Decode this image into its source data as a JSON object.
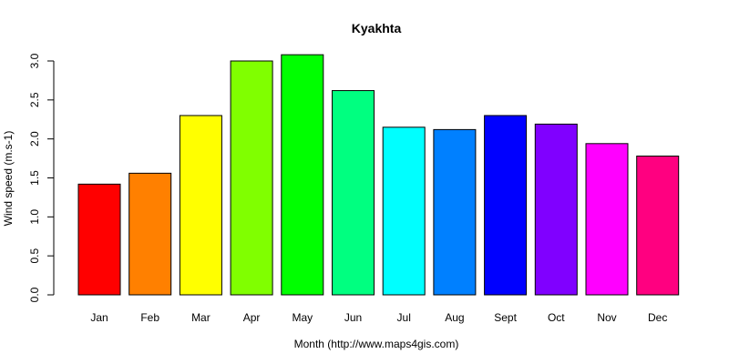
{
  "chart_data": {
    "type": "bar",
    "title": "Kyakhta",
    "xlabel": "Month (http://www.maps4gis.com)",
    "ylabel": "Wind speed (m.s-1)",
    "categories": [
      "Jan",
      "Feb",
      "Mar",
      "Apr",
      "May",
      "Jun",
      "Jul",
      "Aug",
      "Sept",
      "Oct",
      "Nov",
      "Dec"
    ],
    "values": [
      1.42,
      1.56,
      2.3,
      3.0,
      3.08,
      2.62,
      2.15,
      2.12,
      2.3,
      2.19,
      1.94,
      1.78
    ],
    "ylim": [
      0,
      3.0
    ],
    "yticks": [
      "0.0",
      "0.5",
      "1.0",
      "1.5",
      "2.0",
      "2.5",
      "3.0"
    ],
    "colors": [
      "#FF0000",
      "#FF8000",
      "#FFFF00",
      "#80FF00",
      "#00FF00",
      "#00FF80",
      "#00FFFF",
      "#0080FF",
      "#0000FF",
      "#8000FF",
      "#FF00FF",
      "#FF0080"
    ],
    "grid": false,
    "legend": "none"
  }
}
